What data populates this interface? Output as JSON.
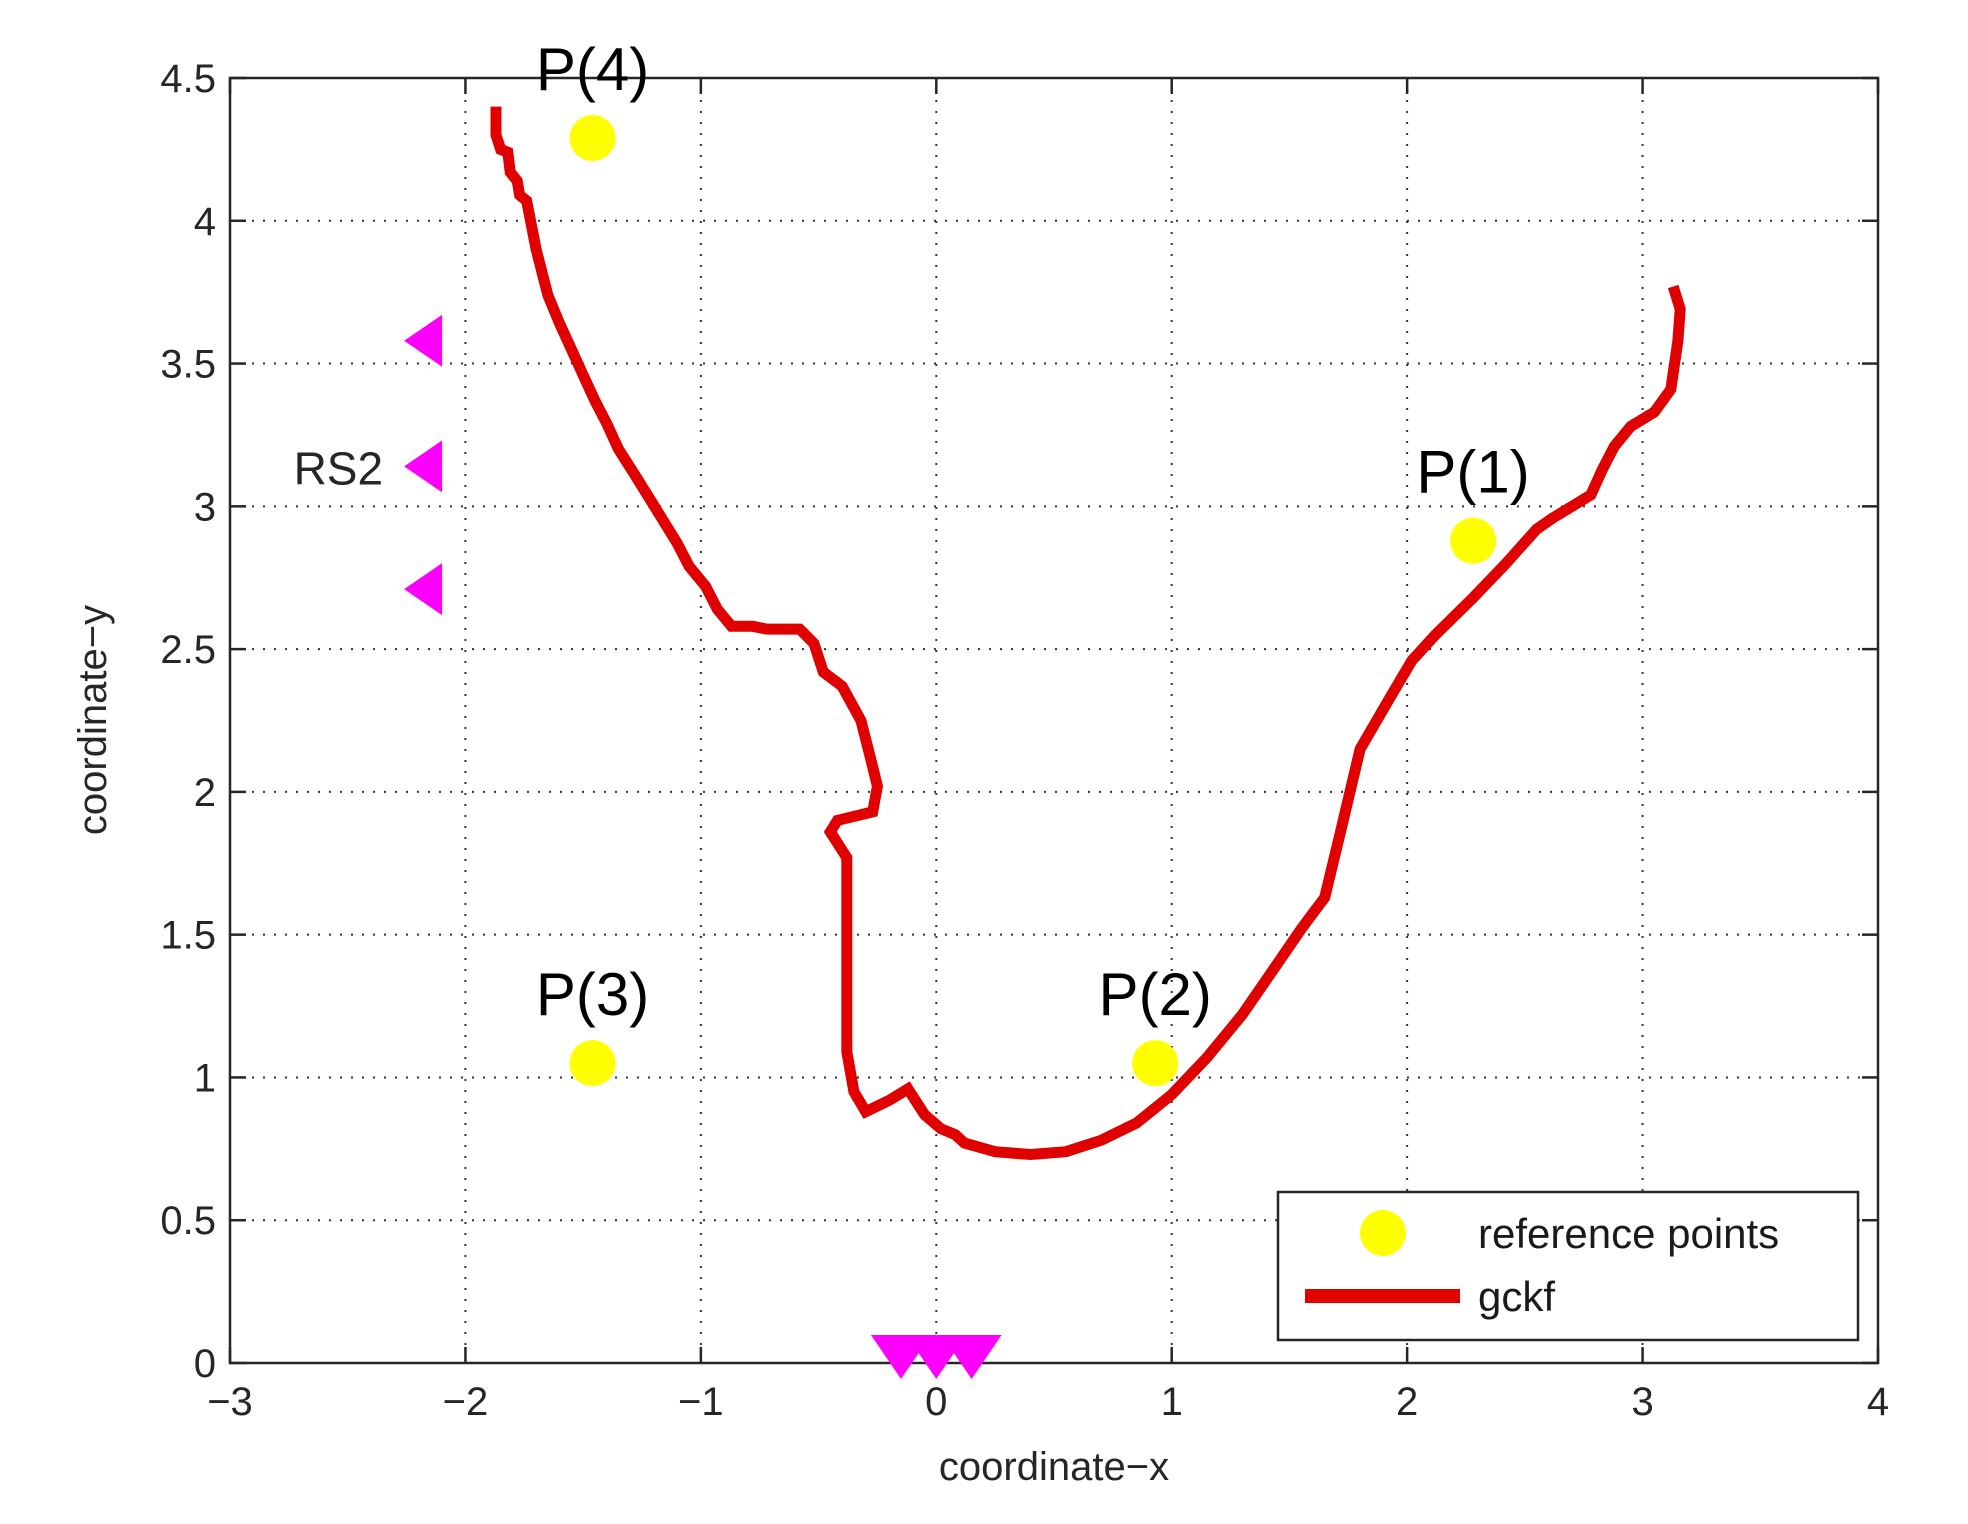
{
  "chart_data": {
    "type": "line",
    "xlabel": "coordinate−x",
    "ylabel": "coordinate−y",
    "xlim": [
      -3,
      4
    ],
    "ylim": [
      0,
      4.5
    ],
    "x_ticks": [
      -3,
      -2,
      -1,
      0,
      1,
      2,
      3,
      4
    ],
    "x_tick_labels": [
      "−3",
      "−2",
      "−1",
      "0",
      "1",
      "2",
      "3",
      "4"
    ],
    "y_ticks": [
      0,
      0.5,
      1,
      1.5,
      2,
      2.5,
      3,
      3.5,
      4,
      4.5
    ],
    "y_tick_labels": [
      "0",
      "0.5",
      "1",
      "1.5",
      "2",
      "2.5",
      "3",
      "3.5",
      "4",
      "4.5"
    ],
    "grid": true,
    "legend_position": "bottom-right",
    "series": [
      {
        "name": "gckf",
        "color": "#e00000",
        "style": "thick-line",
        "points": [
          [
            -1.87,
            4.4
          ],
          [
            -1.87,
            4.3
          ],
          [
            -1.85,
            4.25
          ],
          [
            -1.82,
            4.24
          ],
          [
            -1.81,
            4.17
          ],
          [
            -1.78,
            4.14
          ],
          [
            -1.77,
            4.09
          ],
          [
            -1.74,
            4.07
          ],
          [
            -1.7,
            3.9
          ],
          [
            -1.65,
            3.74
          ],
          [
            -1.6,
            3.64
          ],
          [
            -1.55,
            3.55
          ],
          [
            -1.5,
            3.46
          ],
          [
            -1.45,
            3.37
          ],
          [
            -1.4,
            3.29
          ],
          [
            -1.35,
            3.2
          ],
          [
            -1.28,
            3.11
          ],
          [
            -1.22,
            3.03
          ],
          [
            -1.16,
            2.95
          ],
          [
            -1.1,
            2.87
          ],
          [
            -1.05,
            2.79
          ],
          [
            -0.98,
            2.72
          ],
          [
            -0.93,
            2.64
          ],
          [
            -0.87,
            2.58
          ],
          [
            -0.78,
            2.58
          ],
          [
            -0.72,
            2.57
          ],
          [
            -0.65,
            2.57
          ],
          [
            -0.58,
            2.57
          ],
          [
            -0.52,
            2.52
          ],
          [
            -0.48,
            2.42
          ],
          [
            -0.4,
            2.37
          ],
          [
            -0.32,
            2.25
          ],
          [
            -0.28,
            2.12
          ],
          [
            -0.25,
            2.02
          ],
          [
            -0.27,
            1.93
          ],
          [
            -0.42,
            1.9
          ],
          [
            -0.45,
            1.86
          ],
          [
            -0.38,
            1.77
          ],
          [
            -0.38,
            1.62
          ],
          [
            -0.38,
            1.45
          ],
          [
            -0.38,
            1.26
          ],
          [
            -0.38,
            1.09
          ],
          [
            -0.35,
            0.95
          ],
          [
            -0.3,
            0.88
          ],
          [
            -0.2,
            0.92
          ],
          [
            -0.12,
            0.96
          ],
          [
            -0.05,
            0.87
          ],
          [
            0.02,
            0.82
          ],
          [
            0.08,
            0.8
          ],
          [
            0.12,
            0.77
          ],
          [
            0.25,
            0.74
          ],
          [
            0.4,
            0.73
          ],
          [
            0.55,
            0.74
          ],
          [
            0.7,
            0.78
          ],
          [
            0.85,
            0.84
          ],
          [
            1.0,
            0.94
          ],
          [
            1.15,
            1.07
          ],
          [
            1.3,
            1.22
          ],
          [
            1.45,
            1.4
          ],
          [
            1.55,
            1.52
          ],
          [
            1.65,
            1.63
          ],
          [
            1.72,
            1.87
          ],
          [
            1.8,
            2.15
          ],
          [
            1.92,
            2.32
          ],
          [
            2.02,
            2.46
          ],
          [
            2.12,
            2.55
          ],
          [
            2.28,
            2.68
          ],
          [
            2.42,
            2.8
          ],
          [
            2.55,
            2.92
          ],
          [
            2.62,
            2.96
          ],
          [
            2.78,
            3.04
          ],
          [
            2.83,
            3.13
          ],
          [
            2.88,
            3.21
          ],
          [
            2.95,
            3.28
          ],
          [
            3.05,
            3.33
          ],
          [
            3.12,
            3.41
          ],
          [
            3.15,
            3.58
          ],
          [
            3.16,
            3.69
          ],
          [
            3.13,
            3.77
          ]
        ]
      }
    ],
    "reference_points": {
      "name": "reference points",
      "color": "#ffff00",
      "points": [
        {
          "label": "P(1)",
          "x": 2.28,
          "y": 2.88
        },
        {
          "label": "P(2)",
          "x": 0.93,
          "y": 1.05
        },
        {
          "label": "P(3)",
          "x": -1.46,
          "y": 1.05
        },
        {
          "label": "P(4)",
          "x": -1.46,
          "y": 4.29
        }
      ]
    },
    "anchors": {
      "color": "#ff00ff",
      "groups": [
        {
          "label": "RS2",
          "direction": "left",
          "points": [
            [
              -2.18,
              3.58
            ],
            [
              -2.18,
              3.14
            ],
            [
              -2.18,
              2.71
            ]
          ]
        },
        {
          "label": "",
          "direction": "down",
          "points": [
            [
              -0.15,
              0.0
            ],
            [
              0.0,
              0.0
            ],
            [
              0.15,
              0.0
            ]
          ]
        }
      ]
    }
  }
}
